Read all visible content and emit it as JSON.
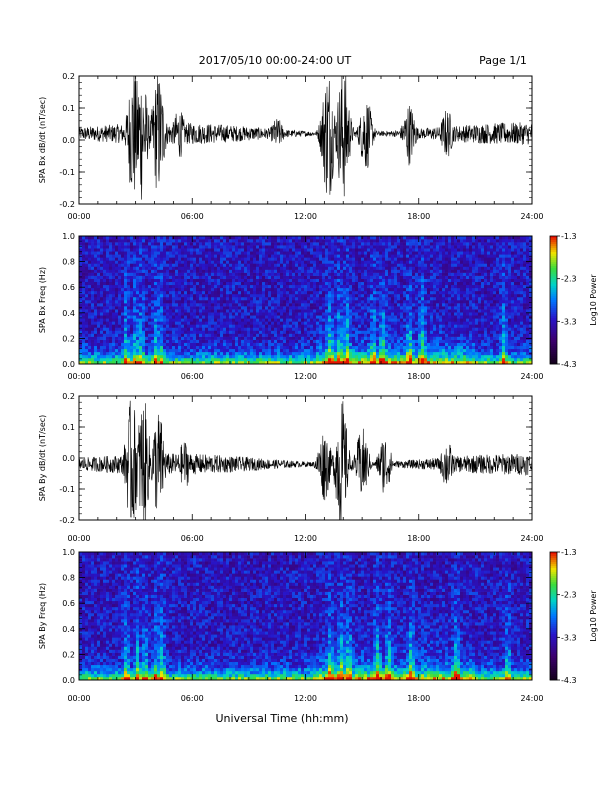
{
  "header": {
    "date_range": "2017/05/10  00:00-24:00 UT",
    "page": "Page 1/1"
  },
  "xaxis_title": "Universal Time (hh:mm)",
  "colors": {
    "trace": "#000000",
    "background": "#000000"
  },
  "chart_data": [
    {
      "type": "line",
      "ylabel": "SPA Bx dB/dt (nT/sec)",
      "x_ticks": [
        "00:00",
        "06:00",
        "12:00",
        "18:00",
        "24:00"
      ],
      "y_ticks": [
        "0.2",
        "0.1",
        "0.0",
        "-0.1",
        "-0.2"
      ],
      "xlim": [
        0,
        24
      ],
      "ylim": [
        -0.2,
        0.2
      ],
      "baseline": 0.02,
      "activity_bursts": [
        {
          "center_hour": 2.9,
          "amplitude": 0.22
        },
        {
          "center_hour": 3.3,
          "amplitude": 0.22
        },
        {
          "center_hour": 4.2,
          "amplitude": 0.2
        },
        {
          "center_hour": 5.3,
          "amplitude": 0.08
        },
        {
          "center_hour": 10.5,
          "amplitude": 0.05
        },
        {
          "center_hour": 13.2,
          "amplitude": 0.22
        },
        {
          "center_hour": 14.0,
          "amplitude": 0.22
        },
        {
          "center_hour": 15.2,
          "amplitude": 0.12
        },
        {
          "center_hour": 17.5,
          "amplitude": 0.1
        },
        {
          "center_hour": 19.5,
          "amplitude": 0.08
        }
      ]
    },
    {
      "type": "heatmap",
      "ylabel": "SPA Bx Freq (Hz)",
      "x_ticks": [
        "00:00",
        "06:00",
        "12:00",
        "18:00",
        "24:00"
      ],
      "y_ticks": [
        "1.0",
        "0.8",
        "0.6",
        "0.4",
        "0.2",
        "0.0"
      ],
      "xlim": [
        0,
        24
      ],
      "ylim": [
        0,
        1
      ],
      "colorbar": {
        "label": "Log10 Power",
        "ticks": [
          "-1.3",
          "-2.3",
          "-3.3",
          "-4.3"
        ],
        "range": [
          -4.3,
          -1.3
        ]
      },
      "bright_columns_hours": [
        2.5,
        3.0,
        3.3,
        4.1,
        4.3,
        13.3,
        13.8,
        14.2,
        15.6,
        16.1,
        17.5,
        18.2,
        22.5
      ]
    },
    {
      "type": "line",
      "ylabel": "SPA By dB/dt (nT/sec)",
      "x_ticks": [
        "00:00",
        "06:00",
        "12:00",
        "18:00",
        "24:00"
      ],
      "y_ticks": [
        "0.2",
        "0.1",
        "0.0",
        "-0.1",
        "-0.2"
      ],
      "xlim": [
        0,
        24
      ],
      "ylim": [
        -0.2,
        0.2
      ],
      "baseline": -0.02,
      "activity_bursts": [
        {
          "center_hour": 2.8,
          "amplitude": 0.22
        },
        {
          "center_hour": 3.4,
          "amplitude": 0.22
        },
        {
          "center_hour": 4.2,
          "amplitude": 0.18
        },
        {
          "center_hour": 5.6,
          "amplitude": 0.08
        },
        {
          "center_hour": 13.0,
          "amplitude": 0.12
        },
        {
          "center_hour": 13.9,
          "amplitude": 0.22
        },
        {
          "center_hour": 15.0,
          "amplitude": 0.12
        },
        {
          "center_hour": 16.2,
          "amplitude": 0.1
        },
        {
          "center_hour": 19.5,
          "amplitude": 0.08
        }
      ]
    },
    {
      "type": "heatmap",
      "ylabel": "SPA By Freq (Hz)",
      "x_ticks": [
        "00:00",
        "06:00",
        "12:00",
        "18:00",
        "24:00"
      ],
      "y_ticks": [
        "1.0",
        "0.8",
        "0.6",
        "0.4",
        "0.2",
        "0.0"
      ],
      "xlim": [
        0,
        24
      ],
      "ylim": [
        0,
        1
      ],
      "colorbar": {
        "label": "Log10 Power",
        "ticks": [
          "-1.3",
          "-2.3",
          "-3.3",
          "-4.3"
        ],
        "range": [
          -4.3,
          -1.3
        ]
      },
      "bright_columns_hours": [
        2.5,
        3.1,
        3.5,
        4.1,
        4.4,
        13.3,
        13.9,
        14.3,
        15.8,
        16.4,
        17.6,
        20.0,
        22.7
      ]
    }
  ]
}
